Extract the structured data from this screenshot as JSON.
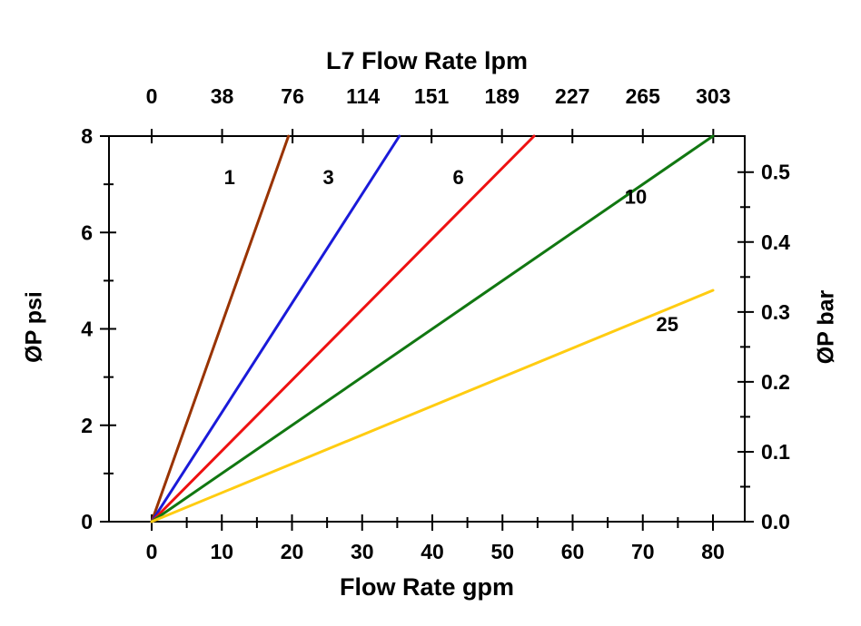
{
  "page": {
    "background": "#ffffff"
  },
  "chart_data": {
    "type": "line",
    "top_axis_title": "L7 Flow Rate lpm",
    "bottom_axis_title": "Flow Rate gpm",
    "left_axis_title": "ØP psi",
    "right_axis_title": "ØP bar",
    "axis_color": "#000000",
    "text_color": "#000000",
    "grid": "off",
    "x_axis_gpm": {
      "min": 0,
      "max": 80,
      "major_ticks": [
        0,
        10,
        20,
        30,
        40,
        50,
        60,
        70,
        80
      ],
      "minor_ticks": [
        5,
        15,
        25,
        35,
        45,
        55,
        65,
        75
      ]
    },
    "y_axis_psi": {
      "min": 0,
      "max": 8,
      "major_ticks": [
        0,
        2,
        4,
        6,
        8
      ],
      "minor_ticks": [
        1,
        3,
        5,
        7
      ]
    },
    "top_axis_lpm": {
      "tick_labels": [
        "0",
        "38",
        "76",
        "114",
        "151",
        "189",
        "227",
        "265",
        "303"
      ],
      "lpm_to_gpm": 0.264172
    },
    "right_axis_bar": {
      "tick_labels": [
        "0.0",
        "0.1",
        "0.2",
        "0.3",
        "0.4",
        "0.5"
      ],
      "tick_values": [
        0,
        0.1,
        0.2,
        0.3,
        0.4,
        0.5
      ],
      "minor_ticks": [
        0.05,
        0.15,
        0.25,
        0.35,
        0.45
      ],
      "bar_to_psi": 14.5038
    },
    "series": [
      {
        "name": "1",
        "label": "1",
        "color": "#993300",
        "points": [
          [
            0,
            0
          ],
          [
            19.5,
            8
          ]
        ],
        "label_at": [
          11.1,
          7.0
        ]
      },
      {
        "name": "3",
        "label": "3",
        "color": "#1a1ad9",
        "points": [
          [
            0,
            0
          ],
          [
            35.3,
            8
          ]
        ],
        "label_at": [
          25.2,
          7.0
        ]
      },
      {
        "name": "6",
        "label": "6",
        "color": "#ee1111",
        "points": [
          [
            0,
            0
          ],
          [
            54.5,
            8
          ]
        ],
        "label_at": [
          43.7,
          7.0
        ]
      },
      {
        "name": "10",
        "label": "10",
        "color": "#117711",
        "points": [
          [
            0,
            0
          ],
          [
            80,
            8
          ]
        ],
        "label_at": [
          69.0,
          6.6
        ]
      },
      {
        "name": "25",
        "label": "25",
        "color": "#ffcc11",
        "points": [
          [
            0,
            0
          ],
          [
            80,
            4.8
          ]
        ],
        "label_at": [
          73.5,
          3.95
        ]
      }
    ]
  }
}
